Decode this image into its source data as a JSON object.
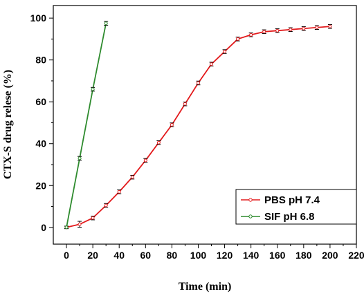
{
  "chart_data": {
    "type": "line",
    "title": "",
    "xlabel": "Time (min)",
    "ylabel": "CTX-S drug relese (%)",
    "xlim": [
      -10,
      220
    ],
    "ylim": [
      -8,
      106
    ],
    "x_ticks": [
      0,
      20,
      40,
      60,
      80,
      100,
      120,
      140,
      160,
      180,
      200,
      220
    ],
    "y_ticks": [
      0,
      20,
      40,
      60,
      80,
      100
    ],
    "grid": false,
    "legend_position": "bottom-right",
    "series": [
      {
        "name": "PBS pH 7.4",
        "color": "#e31a1c",
        "marker": "circle-open",
        "x": [
          0,
          10,
          20,
          30,
          40,
          50,
          60,
          70,
          80,
          90,
          100,
          110,
          120,
          130,
          140,
          150,
          160,
          170,
          180,
          190,
          200
        ],
        "y": [
          0,
          1.5,
          4.5,
          10.5,
          17,
          24,
          32,
          40.5,
          49,
          59,
          69,
          78,
          84,
          90,
          92,
          93.5,
          94,
          94.5,
          95,
          95.5,
          96
        ],
        "error": [
          0.6,
          1.4,
          0.9,
          0.9,
          0.9,
          0.9,
          0.9,
          0.9,
          0.9,
          0.9,
          0.9,
          0.9,
          0.9,
          0.9,
          0.9,
          0.9,
          0.9,
          0.9,
          0.9,
          0.9,
          0.9
        ]
      },
      {
        "name": "SIF pH 6.8",
        "color": "#2e8b2e",
        "marker": "circle-open",
        "x": [
          0,
          10,
          20,
          30
        ],
        "y": [
          0,
          33,
          66,
          97.5
        ],
        "error": [
          0.6,
          0.9,
          0.9,
          0.9
        ]
      }
    ]
  }
}
